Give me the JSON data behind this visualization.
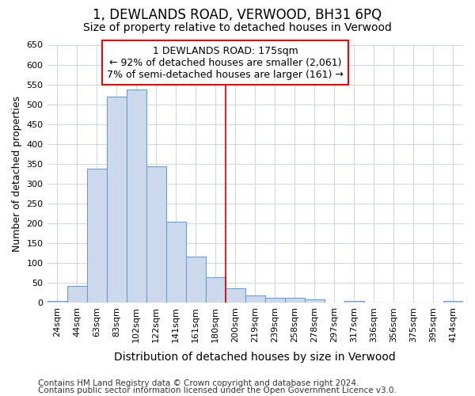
{
  "title": "1, DEWLANDS ROAD, VERWOOD, BH31 6PQ",
  "subtitle": "Size of property relative to detached houses in Verwood",
  "xlabel": "Distribution of detached houses by size in Verwood",
  "ylabel": "Number of detached properties",
  "bar_color": "#ccd9ed",
  "bar_edge_color": "#6b9fd4",
  "categories": [
    "24sqm",
    "44sqm",
    "63sqm",
    "83sqm",
    "102sqm",
    "122sqm",
    "141sqm",
    "161sqm",
    "180sqm",
    "200sqm",
    "219sqm",
    "239sqm",
    "258sqm",
    "278sqm",
    "297sqm",
    "317sqm",
    "336sqm",
    "356sqm",
    "375sqm",
    "395sqm",
    "414sqm"
  ],
  "values": [
    5,
    42,
    338,
    520,
    537,
    343,
    204,
    116,
    65,
    36,
    18,
    13,
    13,
    8,
    0,
    5,
    0,
    0,
    0,
    0,
    5
  ],
  "ylim": [
    0,
    650
  ],
  "yticks": [
    0,
    50,
    100,
    150,
    200,
    250,
    300,
    350,
    400,
    450,
    500,
    550,
    600,
    650
  ],
  "vline_x": 8.5,
  "vline_color": "#cc0000",
  "annotation_title": "1 DEWLANDS ROAD: 175sqm",
  "annotation_line1": "← 92% of detached houses are smaller (2,061)",
  "annotation_line2": "7% of semi-detached houses are larger (161) →",
  "footer1": "Contains HM Land Registry data © Crown copyright and database right 2024.",
  "footer2": "Contains public sector information licensed under the Open Government Licence v3.0.",
  "bg_color": "#ffffff",
  "plot_bg_color": "#ffffff",
  "grid_color": "#d0d8e8",
  "title_fontsize": 12,
  "subtitle_fontsize": 10,
  "annotation_fontsize": 9,
  "tick_fontsize": 8,
  "ylabel_fontsize": 9,
  "xlabel_fontsize": 10,
  "footer_fontsize": 7.5
}
